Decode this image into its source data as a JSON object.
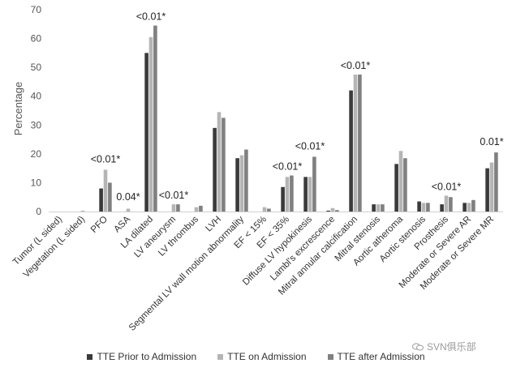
{
  "chart_data": {
    "type": "bar",
    "title": "",
    "xlabel": "",
    "ylabel": "Percentage",
    "ylim": [
      0,
      70
    ],
    "yticks": [
      0,
      10,
      20,
      30,
      40,
      50,
      60,
      70
    ],
    "grid": false,
    "legend_position": "bottom",
    "categories": [
      "Tumor (L sided)",
      "Vegetation (L sided)",
      "PFO",
      "ASA",
      "LA dilated",
      "LV aneurysm",
      "LV thrombus",
      "LVH",
      "Segmental LV wall motion abnormality",
      "EF < 15%",
      "EF < 35%",
      "Diffuse LV hypokinesis",
      "Lambl's excrescence",
      "Mitral annular calcification",
      "Mitral stenosis",
      "Aortic atheroma",
      "Aortic stenosis",
      "Prosthesis",
      "Moderate or Severe AR",
      "Moderate or Severe MR"
    ],
    "series": [
      {
        "name": "TTE Prior to Admission",
        "color": "#3a3a3a",
        "values": [
          0,
          0,
          8,
          0,
          55,
          0,
          0,
          29,
          18.5,
          0,
          8.5,
          12,
          0.3,
          42,
          2.5,
          16.5,
          3.5,
          2.5,
          3,
          15
        ]
      },
      {
        "name": "TTE on Admission",
        "color": "#b5b5b5",
        "values": [
          0,
          0.3,
          14.5,
          1,
          60.5,
          2.5,
          1.5,
          34.5,
          19.5,
          1.5,
          12,
          12,
          1.2,
          47.5,
          2.5,
          21,
          3,
          5.5,
          3,
          17
        ]
      },
      {
        "name": "TTE after Admission",
        "color": "#808080",
        "values": [
          0,
          0,
          10,
          0,
          64.5,
          2.5,
          2,
          32.5,
          21.5,
          1,
          12.5,
          19,
          0.5,
          47.5,
          2.5,
          18.5,
          3,
          5,
          4,
          20.5
        ]
      }
    ],
    "annotations": [
      {
        "category": "PFO",
        "text": "<0.01*",
        "y": 17
      },
      {
        "category": "ASA",
        "text": "0.04*",
        "y": 4
      },
      {
        "category": "LA dilated",
        "text": "<0.01*",
        "y": 66.5
      },
      {
        "category": "LV aneurysm",
        "text": "<0.01*",
        "y": 4.5
      },
      {
        "category": "EF < 35%",
        "text": "<0.01*",
        "y": 14.5
      },
      {
        "category": "Diffuse LV hypokinesis",
        "text": "<0.01*",
        "y": 21.5
      },
      {
        "category": "Mitral annular calcification",
        "text": "<0.01*",
        "y": 49.5
      },
      {
        "category": "Prosthesis",
        "text": "<0.01*",
        "y": 7.5
      },
      {
        "category": "Moderate or Severe MR",
        "text": "0.01*",
        "y": 23
      }
    ]
  },
  "watermark": {
    "text": "SVN俱乐部",
    "icon": "wechat-icon"
  }
}
